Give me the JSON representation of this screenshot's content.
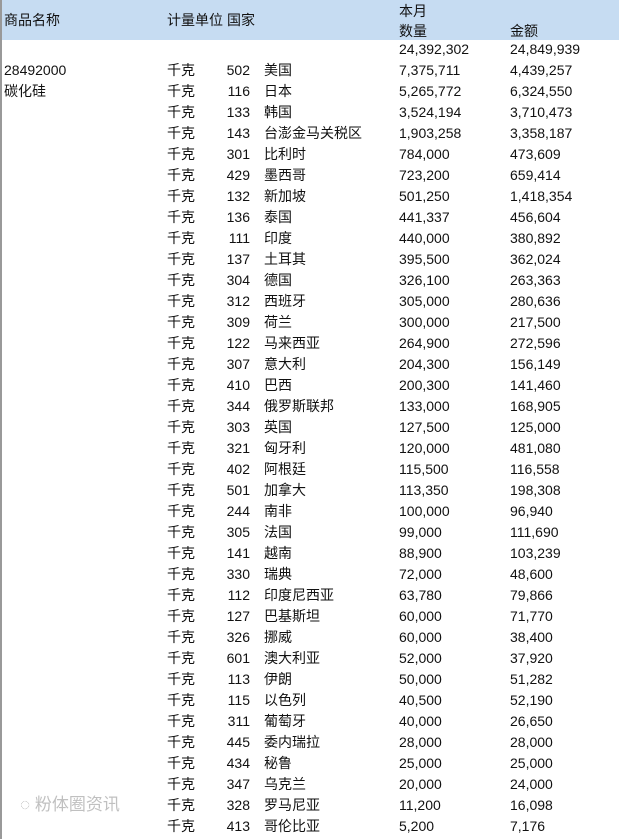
{
  "header": {
    "name": "商品名称",
    "unit": "计量单位",
    "country": "国家",
    "month": "本月",
    "qty": "数量",
    "amount": "金额"
  },
  "product": {
    "code": "28492000",
    "name": "碳化硅"
  },
  "total": {
    "qty": "24,392,302",
    "amount": "24,849,939"
  },
  "rows": [
    [
      "千克",
      "502",
      "美国",
      "7,375,711",
      "4,439,257"
    ],
    [
      "千克",
      "116",
      "日本",
      "5,265,772",
      "6,324,550"
    ],
    [
      "千克",
      "133",
      "韩国",
      "3,524,194",
      "3,710,473"
    ],
    [
      "千克",
      "143",
      "台澎金马关税区",
      "1,903,258",
      "3,358,187"
    ],
    [
      "千克",
      "301",
      "比利时",
      "784,000",
      "473,609"
    ],
    [
      "千克",
      "429",
      "墨西哥",
      "723,200",
      "659,414"
    ],
    [
      "千克",
      "132",
      "新加坡",
      "501,250",
      "1,418,354"
    ],
    [
      "千克",
      "136",
      "泰国",
      "441,337",
      "456,604"
    ],
    [
      "千克",
      "111",
      "印度",
      "440,000",
      "380,892"
    ],
    [
      "千克",
      "137",
      "土耳其",
      "395,500",
      "362,024"
    ],
    [
      "千克",
      "304",
      "德国",
      "326,100",
      "263,363"
    ],
    [
      "千克",
      "312",
      "西班牙",
      "305,000",
      "280,636"
    ],
    [
      "千克",
      "309",
      "荷兰",
      "300,000",
      "217,500"
    ],
    [
      "千克",
      "122",
      "马来西亚",
      "264,900",
      "272,596"
    ],
    [
      "千克",
      "307",
      "意大利",
      "204,300",
      "156,149"
    ],
    [
      "千克",
      "410",
      "巴西",
      "200,300",
      "141,460"
    ],
    [
      "千克",
      "344",
      "俄罗斯联邦",
      "133,000",
      "168,905"
    ],
    [
      "千克",
      "303",
      "英国",
      "127,500",
      "125,000"
    ],
    [
      "千克",
      "321",
      "匈牙利",
      "120,000",
      "481,080"
    ],
    [
      "千克",
      "402",
      "阿根廷",
      "115,500",
      "116,558"
    ],
    [
      "千克",
      "501",
      "加拿大",
      "113,350",
      "198,308"
    ],
    [
      "千克",
      "244",
      "南非",
      "100,000",
      "96,940"
    ],
    [
      "千克",
      "305",
      "法国",
      "99,000",
      "111,690"
    ],
    [
      "千克",
      "141",
      "越南",
      "88,900",
      "103,239"
    ],
    [
      "千克",
      "330",
      "瑞典",
      "72,000",
      "48,600"
    ],
    [
      "千克",
      "112",
      "印度尼西亚",
      "63,780",
      "79,866"
    ],
    [
      "千克",
      "127",
      "巴基斯坦",
      "60,000",
      "71,770"
    ],
    [
      "千克",
      "326",
      "挪威",
      "60,000",
      "38,400"
    ],
    [
      "千克",
      "601",
      "澳大利亚",
      "52,000",
      "37,920"
    ],
    [
      "千克",
      "113",
      "伊朗",
      "50,000",
      "51,282"
    ],
    [
      "千克",
      "115",
      "以色列",
      "40,500",
      "52,190"
    ],
    [
      "千克",
      "311",
      "葡萄牙",
      "40,000",
      "26,650"
    ],
    [
      "千克",
      "445",
      "委内瑞拉",
      "28,000",
      "28,000"
    ],
    [
      "千克",
      "434",
      "秘鲁",
      "25,000",
      "25,000"
    ],
    [
      "千克",
      "347",
      "乌克兰",
      "20,000",
      "24,000"
    ],
    [
      "千克",
      "328",
      "罗马尼亚",
      "11,200",
      "16,098"
    ],
    [
      "千克",
      "413",
      "哥伦比亚",
      "5,200",
      "7,176"
    ]
  ],
  "watermark": "粉体圈资讯"
}
